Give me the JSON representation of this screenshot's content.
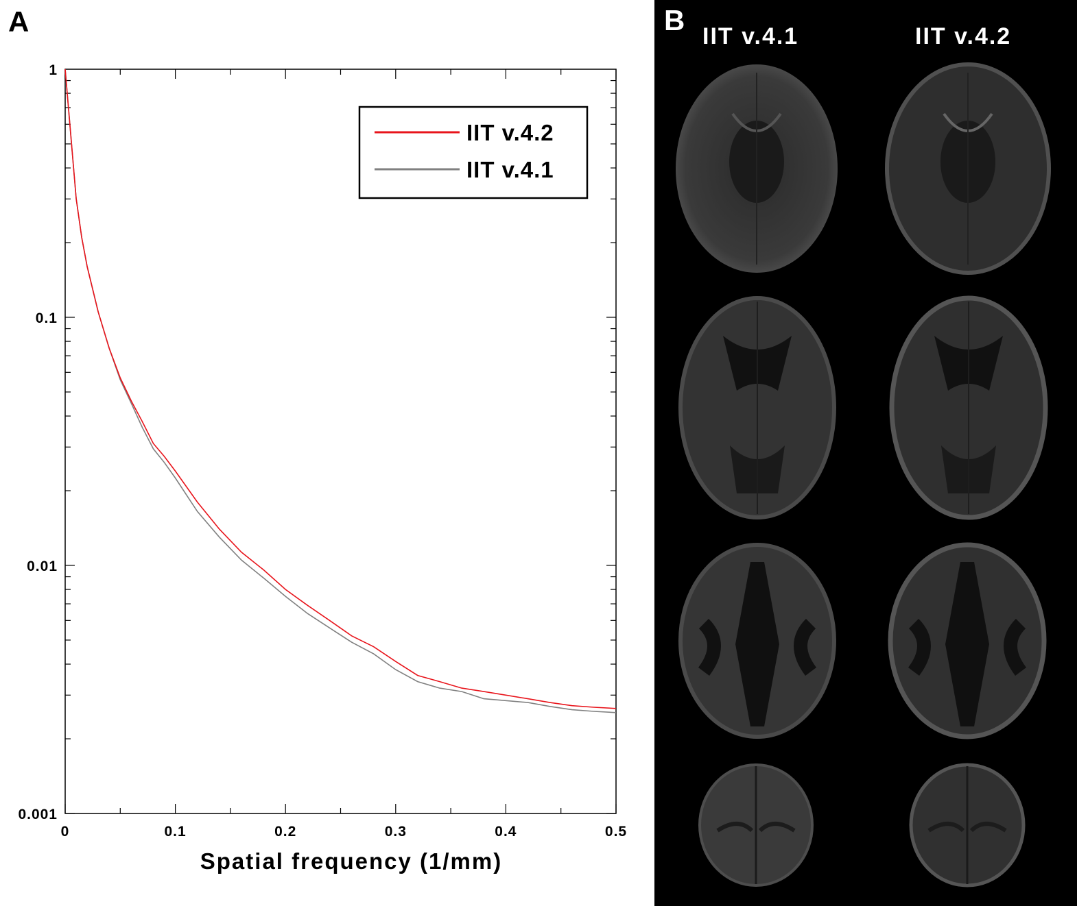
{
  "panel_a": {
    "letter": "A"
  },
  "panel_b": {
    "letter": "B",
    "columns": [
      "IIT v.4.1",
      "IIT v.4.2"
    ],
    "slice_images": [
      {
        "name": "axial-slice-inferior",
        "description": "brain axial slice"
      },
      {
        "name": "axial-slice-ventricles",
        "description": "brain axial slice"
      },
      {
        "name": "axial-slice-superior",
        "description": "brain axial slice"
      },
      {
        "name": "axial-slice-vertex",
        "description": "brain axial slice"
      }
    ]
  },
  "chart_data": {
    "type": "line",
    "title": "",
    "xlabel": "Spatial frequency (1/mm)",
    "ylabel": "",
    "xlim": [
      0,
      0.5
    ],
    "ylim": [
      0.001,
      1
    ],
    "yscale": "log",
    "x_ticks": [
      "0",
      "0.1",
      "0.2",
      "0.3",
      "0.4",
      "0.5"
    ],
    "y_ticks": [
      "0.001",
      "0.01",
      "0.1",
      "1"
    ],
    "legend_position": "top-right",
    "grid": false,
    "series": [
      {
        "name": "IIT v.4.2",
        "color": "#e8141b",
        "points": [
          [
            0,
            1
          ],
          [
            0.005,
            0.55
          ],
          [
            0.01,
            0.3
          ],
          [
            0.015,
            0.21
          ],
          [
            0.02,
            0.16
          ],
          [
            0.03,
            0.105
          ],
          [
            0.04,
            0.075
          ],
          [
            0.05,
            0.057
          ],
          [
            0.06,
            0.046
          ],
          [
            0.07,
            0.038
          ],
          [
            0.08,
            0.031
          ],
          [
            0.09,
            0.0275
          ],
          [
            0.1,
            0.024
          ],
          [
            0.12,
            0.018
          ],
          [
            0.14,
            0.014
          ],
          [
            0.16,
            0.0113
          ],
          [
            0.18,
            0.0096
          ],
          [
            0.2,
            0.008
          ],
          [
            0.22,
            0.0069
          ],
          [
            0.24,
            0.006
          ],
          [
            0.26,
            0.0052
          ],
          [
            0.28,
            0.0047
          ],
          [
            0.3,
            0.0041
          ],
          [
            0.32,
            0.0036
          ],
          [
            0.34,
            0.0034
          ],
          [
            0.36,
            0.0032
          ],
          [
            0.38,
            0.0031
          ],
          [
            0.4,
            0.003
          ],
          [
            0.42,
            0.0029
          ],
          [
            0.44,
            0.0028
          ],
          [
            0.46,
            0.00272
          ],
          [
            0.48,
            0.00268
          ],
          [
            0.5,
            0.00265
          ]
        ]
      },
      {
        "name": "IIT v.4.1",
        "color": "#808080",
        "points": [
          [
            0,
            1
          ],
          [
            0.005,
            0.55
          ],
          [
            0.01,
            0.3
          ],
          [
            0.015,
            0.21
          ],
          [
            0.02,
            0.16
          ],
          [
            0.03,
            0.105
          ],
          [
            0.04,
            0.075
          ],
          [
            0.05,
            0.056
          ],
          [
            0.06,
            0.045
          ],
          [
            0.07,
            0.036
          ],
          [
            0.08,
            0.0295
          ],
          [
            0.09,
            0.026
          ],
          [
            0.1,
            0.0225
          ],
          [
            0.12,
            0.0165
          ],
          [
            0.14,
            0.013
          ],
          [
            0.16,
            0.0105
          ],
          [
            0.18,
            0.0089
          ],
          [
            0.2,
            0.0075
          ],
          [
            0.22,
            0.0064
          ],
          [
            0.24,
            0.0056
          ],
          [
            0.26,
            0.0049
          ],
          [
            0.28,
            0.0044
          ],
          [
            0.3,
            0.0038
          ],
          [
            0.32,
            0.0034
          ],
          [
            0.34,
            0.0032
          ],
          [
            0.36,
            0.0031
          ],
          [
            0.38,
            0.0029
          ],
          [
            0.4,
            0.00285
          ],
          [
            0.42,
            0.0028
          ],
          [
            0.44,
            0.0027
          ],
          [
            0.46,
            0.00262
          ],
          [
            0.48,
            0.00258
          ],
          [
            0.5,
            0.00255
          ]
        ]
      }
    ]
  }
}
